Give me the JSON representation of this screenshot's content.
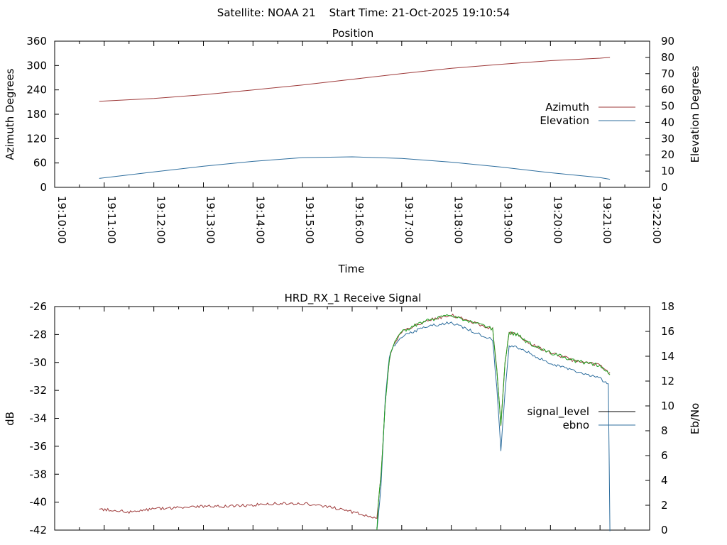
{
  "header": {
    "title": "Satellite: NOAA 21    Start Time: 21-Oct-2025 19:10:54"
  },
  "chart_data": [
    {
      "type": "line",
      "title": "Position",
      "xlabel": "Time",
      "ylabel": "Azimuth Degrees",
      "y2label": "Elevation Degrees",
      "ylim": [
        0,
        360
      ],
      "y2lim": [
        0,
        90
      ],
      "yticks": [
        "0",
        "60",
        "120",
        "180",
        "240",
        "300",
        "360"
      ],
      "y2ticks": [
        "0",
        "10",
        "20",
        "30",
        "40",
        "50",
        "60",
        "70",
        "80",
        "90"
      ],
      "xlim": [
        "19:10:00",
        "19:22:00"
      ],
      "xticks": [
        "19:10:00",
        "19:11:00",
        "19:12:00",
        "19:13:00",
        "19:14:00",
        "19:15:00",
        "19:16:00",
        "19:17:00",
        "19:18:00",
        "19:19:00",
        "19:20:00",
        "19:21:00",
        "19:22:00"
      ],
      "legend_position": "right",
      "series": [
        {
          "name": "Azimuth",
          "axis": "left",
          "color": "#9e3a3a",
          "x": [
            "19:10:54",
            "19:12:00",
            "19:13:00",
            "19:14:00",
            "19:15:00",
            "19:16:00",
            "19:17:00",
            "19:18:00",
            "19:19:00",
            "19:20:00",
            "19:21:00",
            "19:21:12"
          ],
          "y": [
            212,
            219,
            228,
            240,
            252,
            266,
            280,
            293,
            303,
            312,
            318,
            320
          ]
        },
        {
          "name": "Elevation",
          "axis": "right",
          "color": "#2e6e9e",
          "x": [
            "19:10:54",
            "19:12:00",
            "19:13:00",
            "19:14:00",
            "19:15:00",
            "19:16:00",
            "19:17:00",
            "19:18:00",
            "19:19:00",
            "19:20:00",
            "19:21:00",
            "19:21:12"
          ],
          "y": [
            5.5,
            9.5,
            13,
            16,
            18.3,
            18.8,
            17.8,
            15.5,
            12.5,
            9,
            6,
            5
          ]
        }
      ]
    },
    {
      "type": "line",
      "title": "HRD_RX_1 Receive Signal",
      "xlabel": "",
      "ylabel": "dB",
      "y2label": "Eb/No",
      "ylim": [
        -42,
        -26
      ],
      "y2lim": [
        0,
        18
      ],
      "yticks": [
        "-42",
        "-40",
        "-38",
        "-36",
        "-34",
        "-32",
        "-30",
        "-28",
        "-26"
      ],
      "y2ticks": [
        "0",
        "2",
        "4",
        "6",
        "8",
        "10",
        "12",
        "14",
        "16",
        "18"
      ],
      "xlim": [
        "19:10:00",
        "19:22:00"
      ],
      "legend_position": "right",
      "series": [
        {
          "name": "signal_level",
          "axis": "left",
          "color": "#000000",
          "draw_color": "#9e3a3a",
          "x": [
            "19:10:54",
            "19:11:30",
            "19:12:00",
            "19:12:30",
            "19:13:00",
            "19:13:30",
            "19:14:00",
            "19:14:30",
            "19:15:00",
            "19:15:30",
            "19:16:00",
            "19:16:20",
            "19:16:30",
            "19:16:35",
            "19:16:40",
            "19:16:45",
            "19:16:50",
            "19:17:00",
            "19:17:30",
            "19:18:00",
            "19:18:30",
            "19:18:50",
            "19:18:55",
            "19:19:00",
            "19:19:05",
            "19:19:10",
            "19:19:20",
            "19:19:30",
            "19:20:00",
            "19:20:30",
            "19:21:00",
            "19:21:12"
          ],
          "y": [
            -40.5,
            -40.7,
            -40.5,
            -40.4,
            -40.3,
            -40.3,
            -40.2,
            -40.1,
            -40.1,
            -40.3,
            -40.7,
            -41.0,
            -41.2,
            -38.0,
            -33.0,
            -29.8,
            -28.7,
            -27.8,
            -27.0,
            -26.6,
            -27.2,
            -27.6,
            -30.5,
            -34.5,
            -30.0,
            -27.9,
            -28.0,
            -28.5,
            -29.3,
            -29.9,
            -30.2,
            -30.8
          ]
        },
        {
          "name": "ebno",
          "axis": "right",
          "color": "#2e6e9e",
          "x": [
            "19:16:30",
            "19:16:35",
            "19:16:40",
            "19:16:45",
            "19:16:50",
            "19:17:00",
            "19:17:30",
            "19:18:00",
            "19:18:30",
            "19:18:50",
            "19:18:55",
            "19:19:00",
            "19:19:05",
            "19:19:10",
            "19:19:20",
            "19:19:30",
            "19:20:00",
            "19:20:30",
            "19:21:00",
            "19:21:10",
            "19:21:12"
          ],
          "y": [
            0,
            3.5,
            10.5,
            14.0,
            14.8,
            15.6,
            16.4,
            16.7,
            15.9,
            15.3,
            11.5,
            6.4,
            11.0,
            14.8,
            14.7,
            14.4,
            13.4,
            12.8,
            12.2,
            11.7,
            0
          ]
        }
      ]
    }
  ]
}
